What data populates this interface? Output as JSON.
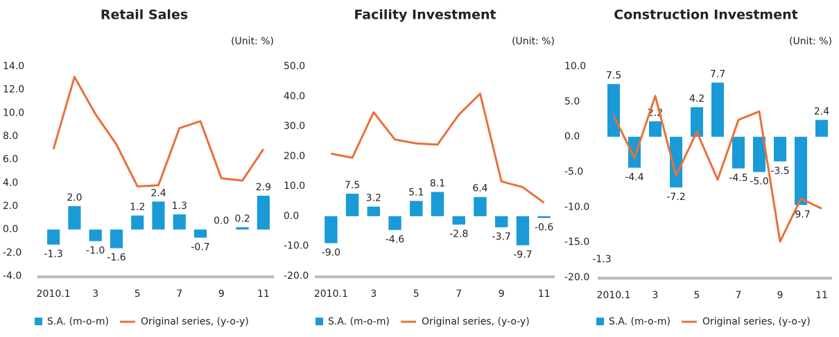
{
  "chart_data": [
    {
      "type": "combo",
      "title": "Retail Sales",
      "subtitle": "(Unit: %)",
      "categories": [
        "2010.1",
        null,
        "3",
        null,
        "5",
        null,
        "7",
        null,
        "9",
        null,
        "11"
      ],
      "ylim": [
        -4,
        14
      ],
      "yticks": [
        {
          "value": -4,
          "label": "-4.0"
        },
        {
          "value": -2,
          "label": "-2.0"
        },
        {
          "value": 0,
          "label": "0.0"
        },
        {
          "value": 2,
          "label": "2.0"
        },
        {
          "value": 4,
          "label": "4.0"
        },
        {
          "value": 6,
          "label": "6.0"
        },
        {
          "value": 8,
          "label": "8.0"
        },
        {
          "value": 10,
          "label": "10.0"
        },
        {
          "value": 12,
          "label": "12.0"
        },
        {
          "value": 14,
          "label": "14.0"
        }
      ],
      "grid": false,
      "series": [
        {
          "name": "S.A. (m-o-m)",
          "type": "bar",
          "color": "#1a9ad6",
          "values": [
            -1.3,
            2.0,
            -1.0,
            -1.6,
            1.2,
            2.4,
            1.3,
            -0.7,
            0.0,
            0.2,
            2.9
          ],
          "value_labels": [
            "-1.3",
            "2.0",
            "-1.0",
            "-1.6",
            "1.2",
            "2.4",
            "1.3",
            "-0.7",
            "0.0",
            "0.2",
            "2.9"
          ]
        },
        {
          "name": "Original series, (y-o-y)",
          "type": "line",
          "color": "#e8703a",
          "values": [
            6.9,
            13.1,
            9.9,
            7.3,
            3.7,
            3.8,
            8.7,
            9.3,
            4.4,
            4.2,
            6.9
          ]
        }
      ]
    },
    {
      "type": "combo",
      "title": "Facility Investment",
      "subtitle": "(Unit: %)",
      "categories": [
        "2010.1",
        null,
        "3",
        null,
        "5",
        null,
        "7",
        null,
        "9",
        null,
        "11"
      ],
      "ylim": [
        -20,
        50
      ],
      "yticks": [
        {
          "value": -20,
          "label": "-20.0"
        },
        {
          "value": -10,
          "label": "-10.0"
        },
        {
          "value": 0,
          "label": "0.0"
        },
        {
          "value": 10,
          "label": "10.0"
        },
        {
          "value": 20,
          "label": "20.0"
        },
        {
          "value": 30,
          "label": "30.0"
        },
        {
          "value": 40,
          "label": "40.0"
        },
        {
          "value": 50,
          "label": "50.0"
        }
      ],
      "grid": false,
      "series": [
        {
          "name": "S.A. (m-o-m)",
          "type": "bar",
          "color": "#1a9ad6",
          "values": [
            -9.0,
            7.5,
            3.2,
            -4.6,
            5.1,
            8.1,
            -2.8,
            6.4,
            -3.7,
            -9.7,
            -0.6
          ],
          "value_labels": [
            "-9.0",
            "7.5",
            "3.2",
            "-4.6",
            "5.1",
            "8.1",
            "-2.8",
            "6.4",
            "-3.7",
            "-9.7",
            "-0.6"
          ]
        },
        {
          "name": "Original series, (y-o-y)",
          "type": "line",
          "color": "#e8703a",
          "values": [
            20.9,
            19.5,
            34.7,
            25.6,
            24.3,
            23.9,
            33.9,
            40.9,
            11.6,
            9.7,
            4.5
          ]
        }
      ]
    },
    {
      "type": "combo",
      "title": "Construction Investment",
      "subtitle": "(Unit: %)",
      "annotation": "-1.3",
      "categories": [
        "2010.1",
        null,
        "3",
        null,
        "5",
        null,
        "7",
        null,
        "9",
        null,
        "11"
      ],
      "ylim": [
        -20,
        10
      ],
      "yticks": [
        {
          "value": -20,
          "label": "-20.0"
        },
        {
          "value": -15,
          "label": "-15.0"
        },
        {
          "value": -10,
          "label": "-10.0"
        },
        {
          "value": -5,
          "label": "-5.0"
        },
        {
          "value": 0,
          "label": "0.0"
        },
        {
          "value": 5,
          "label": "5.0"
        },
        {
          "value": 10,
          "label": "10.0"
        }
      ],
      "grid": false,
      "series": [
        {
          "name": "S.A. (m-o-m)",
          "type": "bar",
          "color": "#1a9ad6",
          "values": [
            7.5,
            -4.4,
            2.2,
            -7.2,
            4.2,
            7.7,
            -4.5,
            -5.0,
            -3.5,
            -9.7,
            2.4
          ],
          "value_labels": [
            "7.5",
            "-4.4",
            "2.2",
            "-7.2",
            "4.2",
            "7.7",
            "-4.5",
            "-5.0",
            "-3.5",
            "-9.7",
            "2.4"
          ]
        },
        {
          "name": "Original series, (y-o-y)",
          "type": "line",
          "color": "#e8703a",
          "values": [
            3.0,
            -3.0,
            5.8,
            -5.5,
            0.7,
            -6.1,
            2.4,
            3.6,
            -14.9,
            -8.8,
            -10.2
          ]
        }
      ]
    }
  ]
}
